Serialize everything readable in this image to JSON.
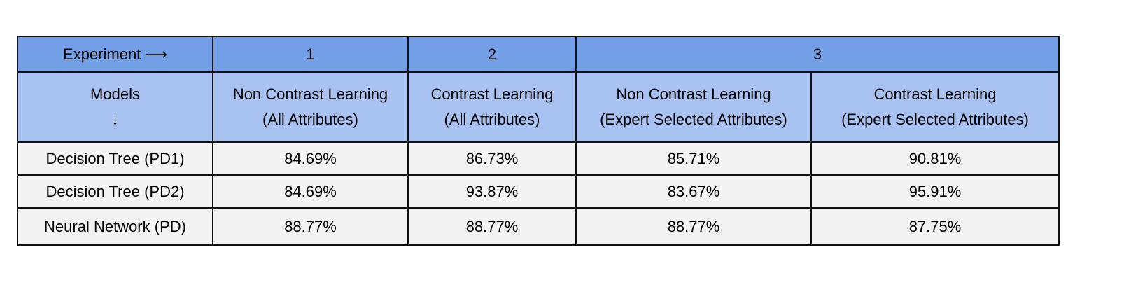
{
  "table": {
    "experiment_row": {
      "label": "Experiment ⟶",
      "experiments": [
        "1",
        "2",
        "3"
      ]
    },
    "header_row": {
      "models_label": "Models",
      "models_arrow": "↓",
      "columns": [
        {
          "line1": "Non Contrast Learning",
          "line2": "(All Attributes)"
        },
        {
          "line1": "Contrast Learning",
          "line2": "(All Attributes)"
        },
        {
          "line1": "Non Contrast Learning",
          "line2": "(Expert Selected Attributes)"
        },
        {
          "line1": "Contrast Learning",
          "line2": "(Expert Selected Attributes)"
        }
      ]
    },
    "rows": [
      {
        "model": "Decision Tree (PD1)",
        "values": [
          "84.69%",
          "86.73%",
          "85.71%",
          "90.81%"
        ]
      },
      {
        "model": "Decision Tree (PD2)",
        "values": [
          "84.69%",
          "93.87%",
          "83.67%",
          "95.91%"
        ]
      },
      {
        "model": "Neural Network (PD)",
        "values": [
          "88.77%",
          "88.77%",
          "88.77%",
          "87.75%"
        ]
      }
    ]
  },
  "colors": {
    "experiment_row_bg": "#729fe6",
    "header_row_bg": "#a8c3f1",
    "data_row_bg": "#f3f3f3",
    "border": "#111111"
  }
}
